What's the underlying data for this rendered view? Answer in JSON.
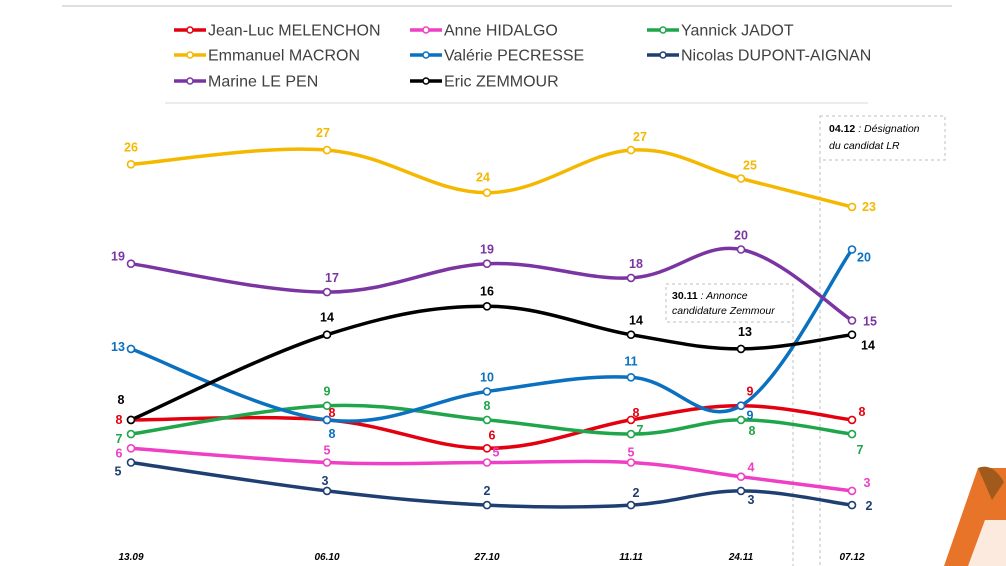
{
  "chart_data": {
    "type": "line",
    "title": "",
    "xlabel": "",
    "ylabel": "",
    "ylim": [
      0,
      30
    ],
    "grid": false,
    "legend_position": "top",
    "categories": [
      "13.09",
      "06.10",
      "27.10",
      "11.11",
      "24.11",
      "07.12"
    ],
    "tick_year": "2021",
    "series": [
      {
        "name": "Jean-Luc MELENCHON",
        "color": "#e3000f",
        "values": [
          8,
          8,
          6,
          8,
          9,
          8
        ]
      },
      {
        "name": "Anne HIDALGO",
        "color": "#ee3fc5",
        "values": [
          6,
          5,
          5,
          5,
          4,
          3
        ]
      },
      {
        "name": "Yannick JADOT",
        "color": "#1fa64a",
        "values": [
          7,
          9,
          8,
          7,
          8,
          7
        ]
      },
      {
        "name": "Emmanuel MACRON",
        "color": "#f5b800",
        "values": [
          26,
          27,
          24,
          27,
          25,
          23
        ]
      },
      {
        "name": "Valérie PECRESSE",
        "color": "#0a70c0",
        "values": [
          13,
          8,
          10,
          11,
          9,
          20
        ]
      },
      {
        "name": "Nicolas DUPONT-AIGNAN",
        "color": "#1f3f73",
        "values": [
          5,
          3,
          2,
          2,
          3,
          2
        ]
      },
      {
        "name": "Marine LE PEN",
        "color": "#7a35a3",
        "values": [
          19,
          17,
          19,
          18,
          20,
          15
        ]
      },
      {
        "name": "Eric ZEMMOUR",
        "color": "#000000",
        "values": [
          8,
          14,
          16,
          14,
          13,
          14
        ]
      }
    ],
    "annotations": [
      {
        "date": "30.11",
        "text": "Annonce candidature Zemmour",
        "line2": "candidature Zemmour",
        "line1": "Annonce"
      },
      {
        "date": "04.12",
        "text": "Désignation du candidat LR",
        "line1": "Désignation",
        "line2": "du candidat LR"
      }
    ]
  },
  "colors": {
    "logo_orange": "#e8742a",
    "logo_brown": "#a05a1c"
  }
}
